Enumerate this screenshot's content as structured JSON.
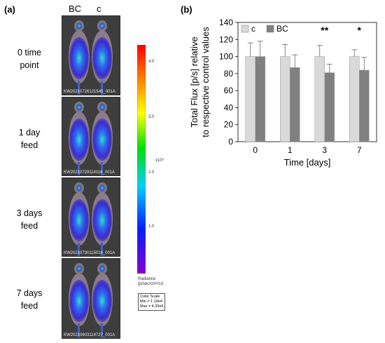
{
  "panel_a": {
    "label": "(a)",
    "columns": [
      "BC",
      "c"
    ],
    "rows": [
      {
        "line1": "0 time",
        "line2": "point",
        "image_id": "KW20210726121545_001A"
      },
      {
        "line1": "1 day",
        "line2": "feed",
        "image_id": "KW20210728114116_001A"
      },
      {
        "line1": "3 days",
        "line2": "feed",
        "image_id": "KW20210730115016_001A"
      },
      {
        "line1": "7 days",
        "line2": "feed",
        "image_id": "KW20210803114727_001A"
      }
    ],
    "color_scale": {
      "ticks": [
        "4.0",
        "3.0",
        "2.0",
        "1.0"
      ],
      "exponent": "x10⁵",
      "radiance_line1": "Radiance",
      "radiance_line2": "(p/sec/cm²/sr)",
      "box_title": "Color Scale",
      "box_min": "Min = 1.19e4",
      "box_max": "Max = 4.33e5"
    }
  },
  "panel_b": {
    "label": "(b)"
  },
  "chart_data": {
    "type": "bar",
    "categories": [
      "0",
      "1",
      "3",
      "7"
    ],
    "series": [
      {
        "name": "c",
        "values": [
          100,
          100,
          100,
          100
        ],
        "errors": [
          16,
          14,
          13,
          8
        ],
        "color": "#d9d9d9"
      },
      {
        "name": "BC",
        "values": [
          100,
          87,
          81,
          84
        ],
        "errors": [
          18,
          15,
          10,
          15
        ],
        "color": "#808080"
      }
    ],
    "xlabel": "Time [days]",
    "ylabel_line1": "Total Flux [p/s] relative",
    "ylabel_line2": "to respective control values",
    "ylim": [
      0,
      140
    ],
    "yticks": [
      0,
      20,
      40,
      60,
      80,
      100,
      120,
      140
    ],
    "legend_position": "top-left",
    "annotations": [
      {
        "category": "3",
        "text": "**"
      },
      {
        "category": "7",
        "text": "*"
      }
    ],
    "grid": false
  }
}
